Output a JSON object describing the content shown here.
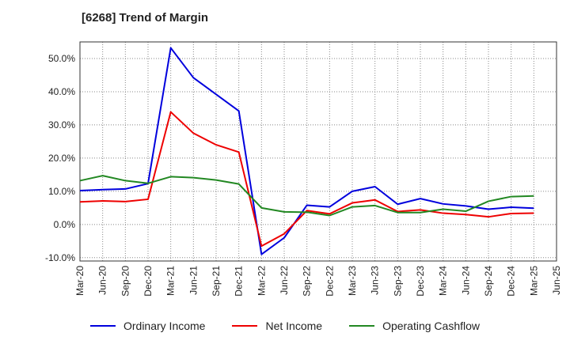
{
  "chart_data": {
    "type": "line",
    "title": "[6268]  Trend of Margin",
    "xlabel": "",
    "ylabel": "",
    "ylim": [
      -11,
      55
    ],
    "yticks": [
      -10,
      0,
      10,
      20,
      30,
      40,
      50
    ],
    "ytick_labels": [
      "-10.0%",
      "0.0%",
      "10.0%",
      "20.0%",
      "30.0%",
      "40.0%",
      "50.0%"
    ],
    "categories": [
      "Mar-20",
      "Jun-20",
      "Sep-20",
      "Dec-20",
      "Mar-21",
      "Jun-21",
      "Sep-21",
      "Dec-21",
      "Mar-22",
      "Jun-22",
      "Sep-22",
      "Dec-22",
      "Mar-23",
      "Jun-23",
      "Sep-23",
      "Dec-23",
      "Mar-24",
      "Jun-24",
      "Sep-24",
      "Dec-24",
      "Mar-25",
      "Jun-25"
    ],
    "grid": true,
    "legend_position": "bottom",
    "series": [
      {
        "name": "Ordinary Income",
        "color": "#0000dd",
        "values": [
          10.2,
          10.5,
          10.7,
          12.3,
          53.2,
          44.2,
          39.2,
          34.2,
          -9.0,
          -4.0,
          5.8,
          5.3,
          10.0,
          11.4,
          6.1,
          7.8,
          6.2,
          5.6,
          4.6,
          5.2,
          4.9,
          null
        ]
      },
      {
        "name": "Net Income",
        "color": "#ee0000",
        "values": [
          6.8,
          7.1,
          6.9,
          7.6,
          33.9,
          27.5,
          24.0,
          21.8,
          -6.5,
          -2.8,
          4.2,
          3.2,
          6.5,
          7.4,
          3.9,
          4.4,
          3.4,
          3.0,
          2.3,
          3.3,
          3.4,
          null
        ]
      },
      {
        "name": "Operating Cashflow",
        "color": "#228822",
        "values": [
          13.2,
          14.7,
          13.2,
          12.4,
          14.4,
          14.1,
          13.4,
          12.2,
          5.0,
          3.8,
          3.7,
          2.7,
          5.3,
          5.7,
          3.6,
          3.6,
          4.6,
          4.0,
          7.0,
          8.4,
          8.6,
          null
        ]
      }
    ]
  }
}
